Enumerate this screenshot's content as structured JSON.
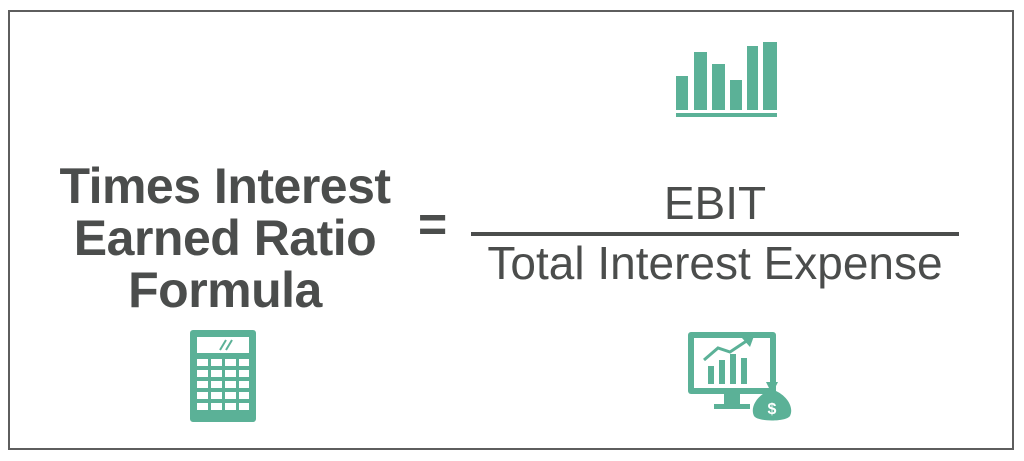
{
  "formula": {
    "lhs_lines": [
      "Times Interest",
      "Earned Ratio",
      "Formula"
    ],
    "equals": "=",
    "numerator": "EBIT",
    "denominator": "Total Interest Expense"
  },
  "colors": {
    "text": "#4b4d4c",
    "accent": "#5bb197",
    "frame": "#5e5e5e"
  },
  "icons": {
    "top": "bar-chart-icon",
    "bottom_left": "calculator-icon",
    "bottom_right": "monitor-growth-money-bag-icon",
    "money_bag_symbol": "$"
  }
}
